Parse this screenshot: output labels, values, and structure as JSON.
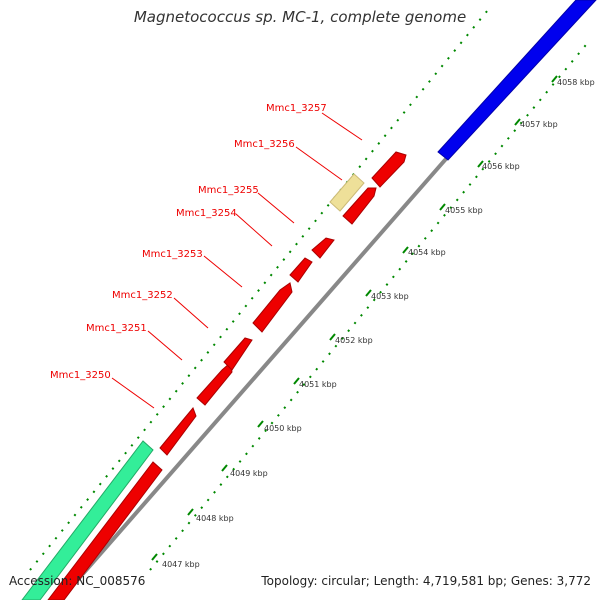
{
  "title": "Magnetococcus sp. MC-1, complete genome",
  "footer": {
    "accession": "Accession: NC_008576",
    "summary": "Topology: circular; Length: 4,719,581 bp; Genes: 3,772"
  },
  "colors": {
    "forward_gene": "#ee0000",
    "other_gene": "#0000ee",
    "teal_feature": "#33ee99",
    "pale_feature": "#eee099",
    "backbone": "#888888",
    "tick": "#008800",
    "label": "#ee0000"
  },
  "gene_labels": [
    "Mmc1_3257",
    "Mmc1_3256",
    "Mmc1_3255",
    "Mmc1_3254",
    "Mmc1_3253",
    "Mmc1_3252",
    "Mmc1_3251",
    "Mmc1_3250"
  ],
  "kbp_labels": [
    "4058 kbp",
    "4057 kbp",
    "4056 kbp",
    "4055 kbp",
    "4054 kbp",
    "4053 kbp",
    "4052 kbp",
    "4051 kbp",
    "4050 kbp",
    "4049 kbp",
    "4048 kbp",
    "4047 kbp"
  ]
}
